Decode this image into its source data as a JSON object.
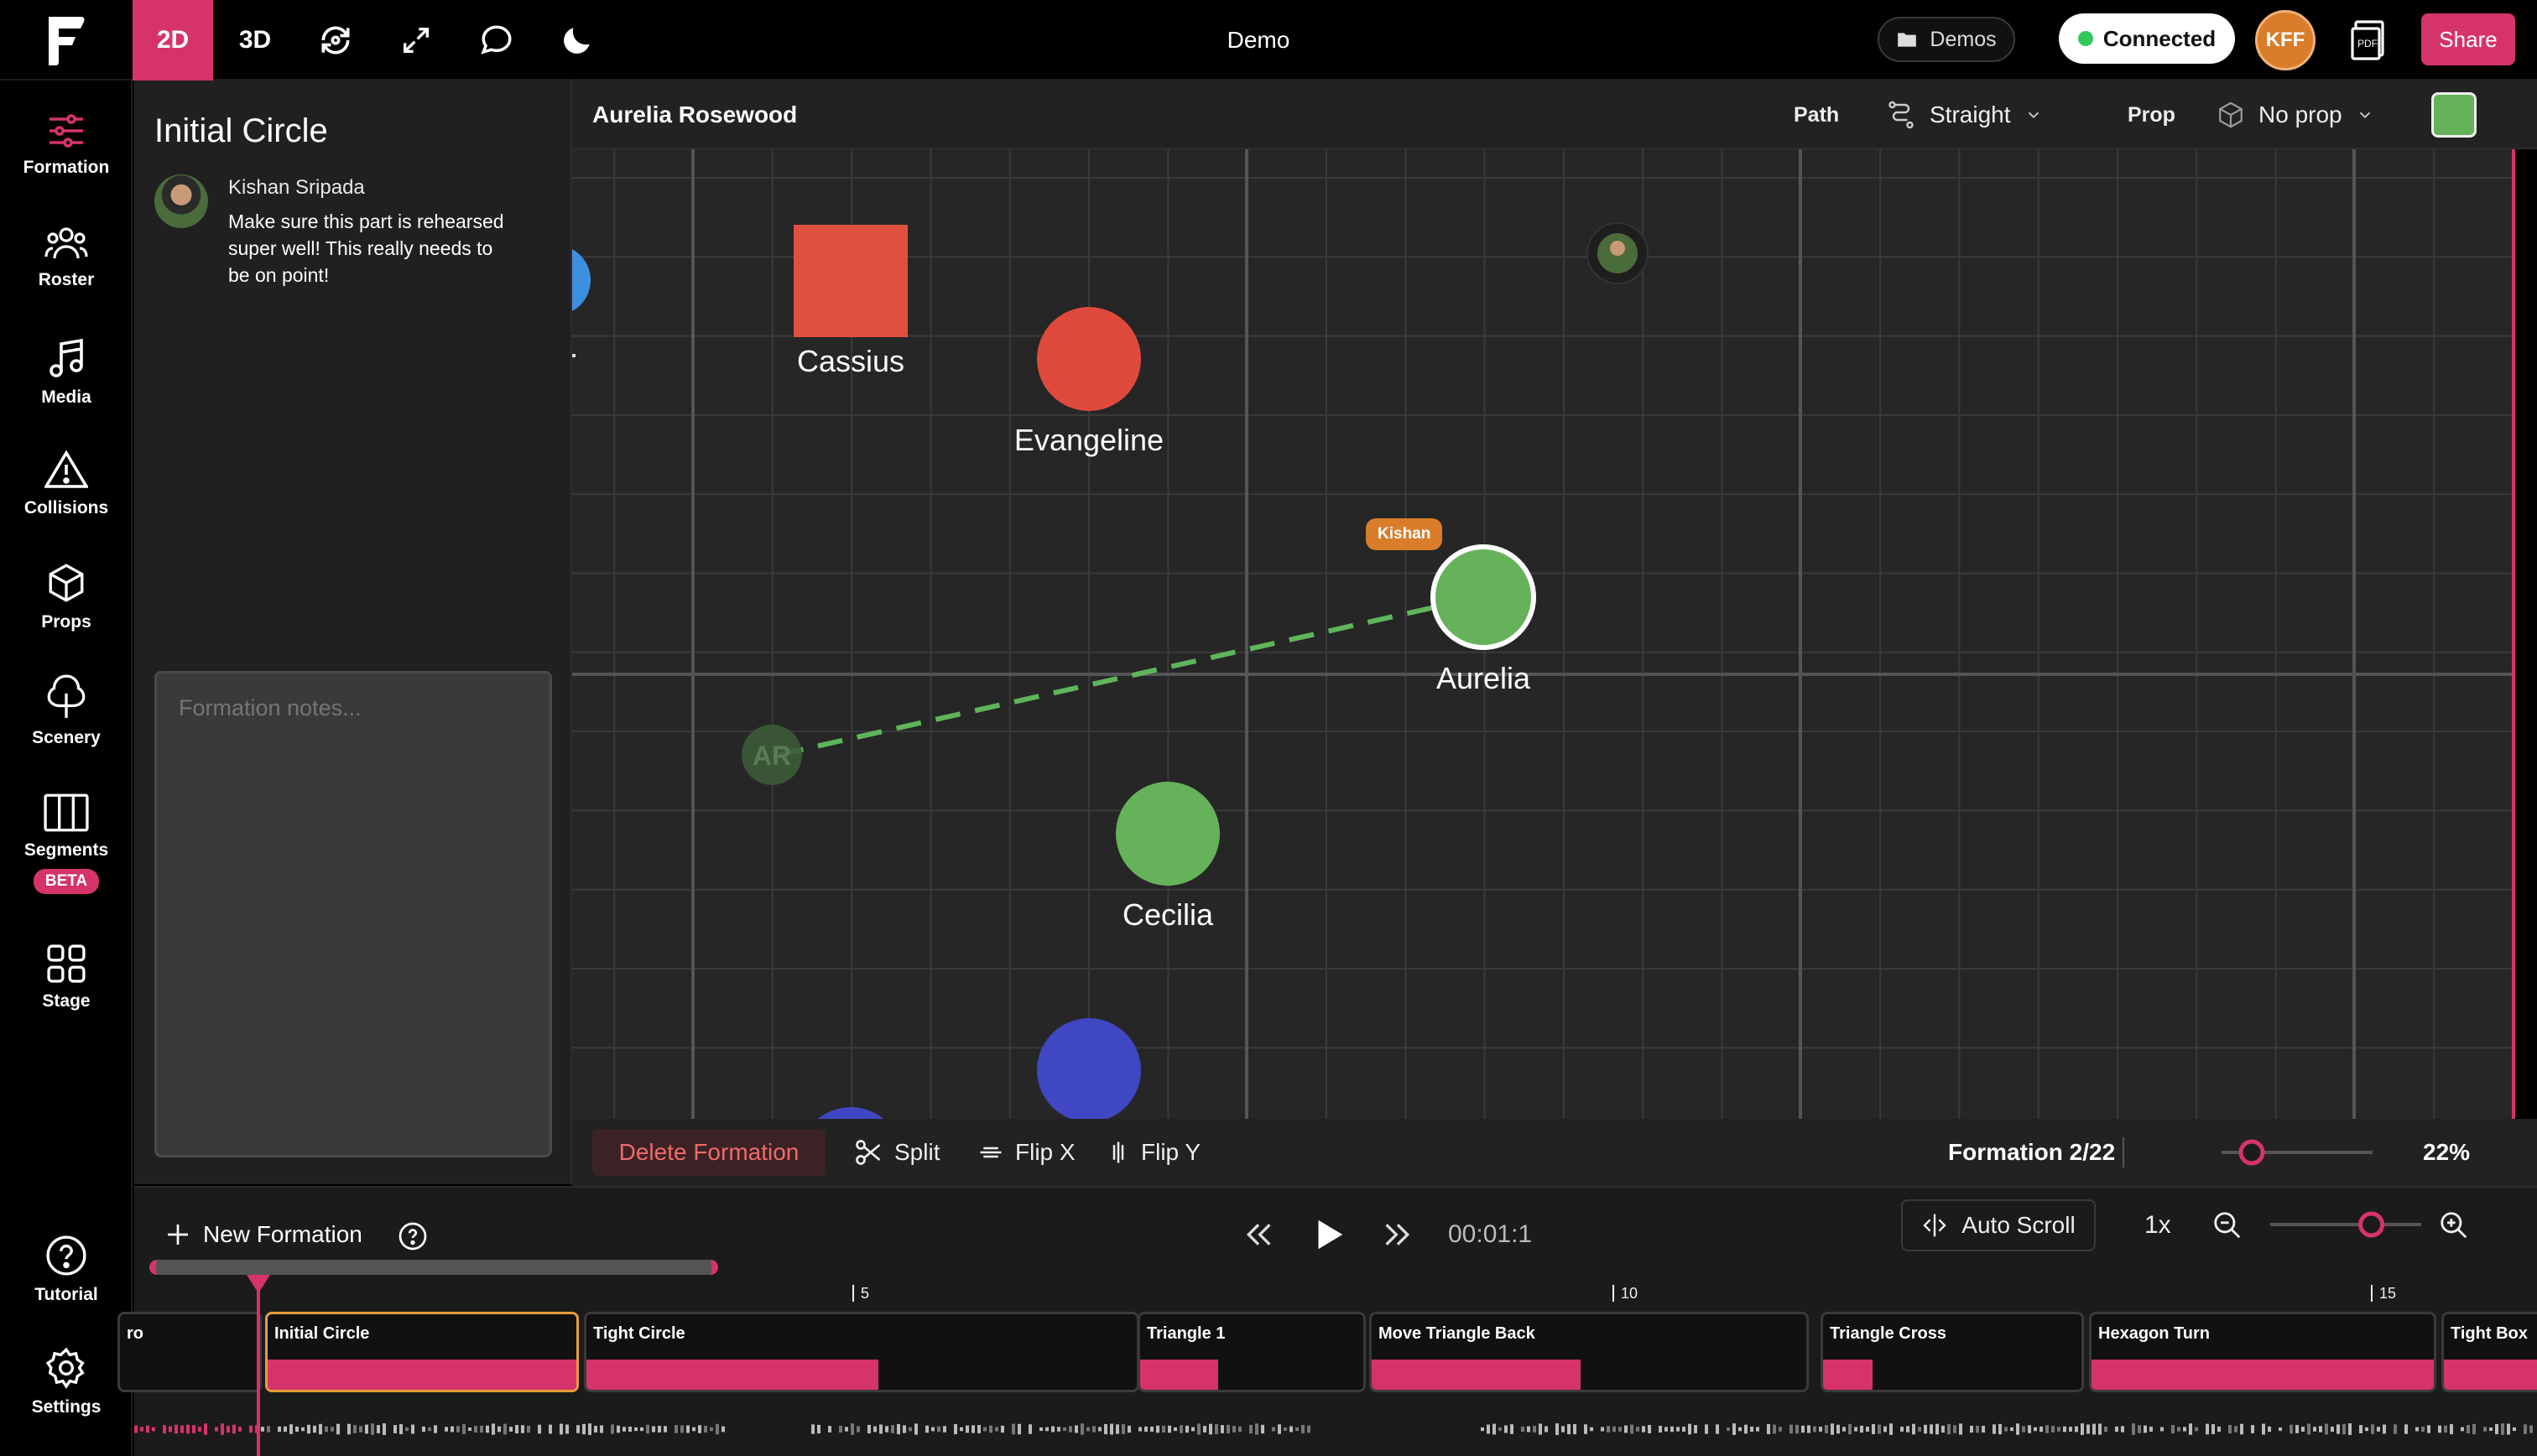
{
  "topbar": {
    "mode_2d": "2D",
    "mode_3d": "3D",
    "title": "Demo",
    "demos_label": "Demos",
    "connection_status": "Connected",
    "user_initials": "KFF",
    "share_label": "Share",
    "brand_color": "#d6336c"
  },
  "sidebar": {
    "items": [
      {
        "label": "Formation",
        "icon": "sliders-icon"
      },
      {
        "label": "Roster",
        "icon": "people-icon"
      },
      {
        "label": "Media",
        "icon": "music-note-icon"
      },
      {
        "label": "Collisions",
        "icon": "warning-icon"
      },
      {
        "label": "Props",
        "icon": "cube-icon"
      },
      {
        "label": "Scenery",
        "icon": "tree-icon"
      },
      {
        "label": "Segments",
        "icon": "columns-icon",
        "badge": "BETA"
      },
      {
        "label": "Stage",
        "icon": "grid-icon"
      }
    ],
    "bottom_items": [
      {
        "label": "Tutorial",
        "icon": "question-icon"
      },
      {
        "label": "Settings",
        "icon": "gear-icon"
      }
    ]
  },
  "panel": {
    "title": "Initial Circle",
    "comment": {
      "author": "Kishan Sripada",
      "text": "Make sure this part is rehearsed super well! This really needs to be on point!"
    },
    "notes_placeholder": "Formation notes..."
  },
  "stage_header": {
    "selected_dancer": "Aurelia Rosewood",
    "path_label": "Path",
    "path_value": "Straight",
    "prop_label": "Prop",
    "prop_value": "No prop",
    "dancer_color": "#66b25a"
  },
  "stage": {
    "dancers": [
      {
        "name": "Cassius",
        "shape": "square",
        "color": "#e05040"
      },
      {
        "name": "Evangeline",
        "shape": "circle",
        "color": "#e04a3c"
      },
      {
        "name": "Aurelia",
        "shape": "circle",
        "color": "#66b25a",
        "selected": true
      },
      {
        "name": "Cecilia",
        "shape": "circle",
        "color": "#66b25a"
      }
    ],
    "ghost_initials": "AR",
    "cursor_tag": "Kishan"
  },
  "stage_toolbar": {
    "delete_label": "Delete Formation",
    "split_label": "Split",
    "flip_x_label": "Flip X",
    "flip_y_label": "Flip Y",
    "formation_count": "Formation 2/22",
    "zoom_value": 0.2,
    "zoom_percent": "22%"
  },
  "timeline": {
    "new_formation_label": "New Formation",
    "time": "00:01:1",
    "auto_scroll_label": "Auto Scroll",
    "speed": "1x",
    "zoom_value": 0.67,
    "ruler_marks": [
      "5",
      "10",
      "15"
    ],
    "formations": [
      {
        "name": "ro",
        "fill": 0
      },
      {
        "name": "Initial Circle",
        "fill": 1.0,
        "selected": true
      },
      {
        "name": "Tight Circle",
        "fill": 0.53
      },
      {
        "name": "Triangle 1",
        "fill": 0.35
      },
      {
        "name": "Move Triangle Back",
        "fill": 0.48
      },
      {
        "name": "Triangle Cross",
        "fill": 0.19
      },
      {
        "name": "Hexagon Turn",
        "fill": 1.0
      },
      {
        "name": "Tight Box",
        "fill": 1.0
      }
    ]
  }
}
